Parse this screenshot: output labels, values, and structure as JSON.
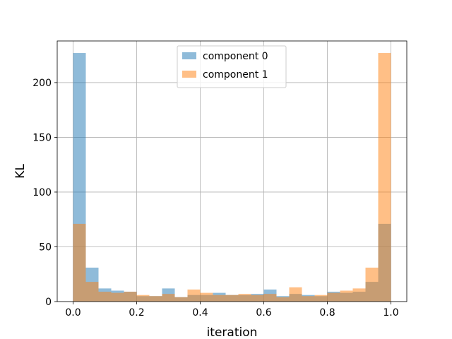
{
  "chart_data": {
    "type": "bar",
    "title": "",
    "xlabel": "iteration",
    "ylabel": "KL",
    "xlim": [
      -0.05,
      1.05
    ],
    "ylim": [
      0,
      238
    ],
    "xticks": [
      0.0,
      0.2,
      0.4,
      0.6,
      0.8,
      1.0
    ],
    "xtick_labels": [
      "0.0",
      "0.2",
      "0.4",
      "0.6",
      "0.8",
      "1.0"
    ],
    "yticks": [
      0,
      50,
      100,
      150,
      200
    ],
    "ytick_labels": [
      "0",
      "50",
      "100",
      "150",
      "200"
    ],
    "grid": true,
    "legend_position": "top-center",
    "bin_edges": [
      0.0,
      0.04,
      0.08,
      0.12,
      0.16,
      0.2,
      0.24,
      0.28,
      0.32,
      0.36,
      0.4,
      0.44,
      0.48,
      0.52,
      0.56,
      0.6,
      0.64,
      0.68,
      0.72,
      0.76,
      0.8,
      0.84,
      0.88,
      0.92,
      0.96,
      1.0
    ],
    "series": [
      {
        "name": "component 0",
        "color": "#1f77b4",
        "values": [
          227,
          31,
          12,
          10,
          9,
          5,
          5,
          12,
          4,
          6,
          6,
          8,
          6,
          6,
          7,
          11,
          5,
          7,
          6,
          5,
          9,
          8,
          9,
          18,
          71
        ]
      },
      {
        "name": "component 1",
        "color": "#ff7f0e",
        "values": [
          71,
          18,
          9,
          8,
          9,
          6,
          5,
          7,
          4,
          11,
          8,
          6,
          6,
          7,
          6,
          7,
          4,
          13,
          5,
          6,
          8,
          10,
          12,
          31,
          227
        ]
      }
    ]
  }
}
